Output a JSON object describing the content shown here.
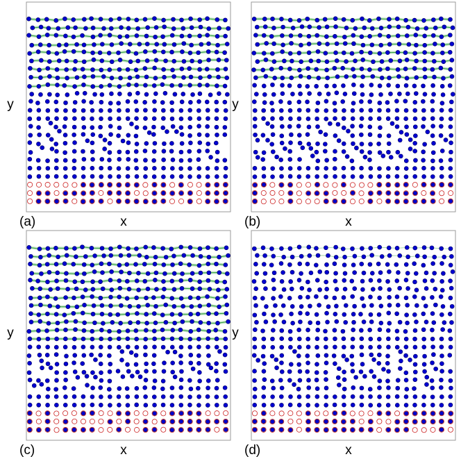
{
  "panels": [
    {
      "label": "(a)",
      "x_label": "x",
      "y_label": "y"
    },
    {
      "label": "(b)",
      "x_label": "x",
      "y_label": "y"
    },
    {
      "label": "(c)",
      "x_label": "x",
      "y_label": "y"
    },
    {
      "label": "(d)",
      "x_label": "x",
      "y_label": "y"
    }
  ]
}
